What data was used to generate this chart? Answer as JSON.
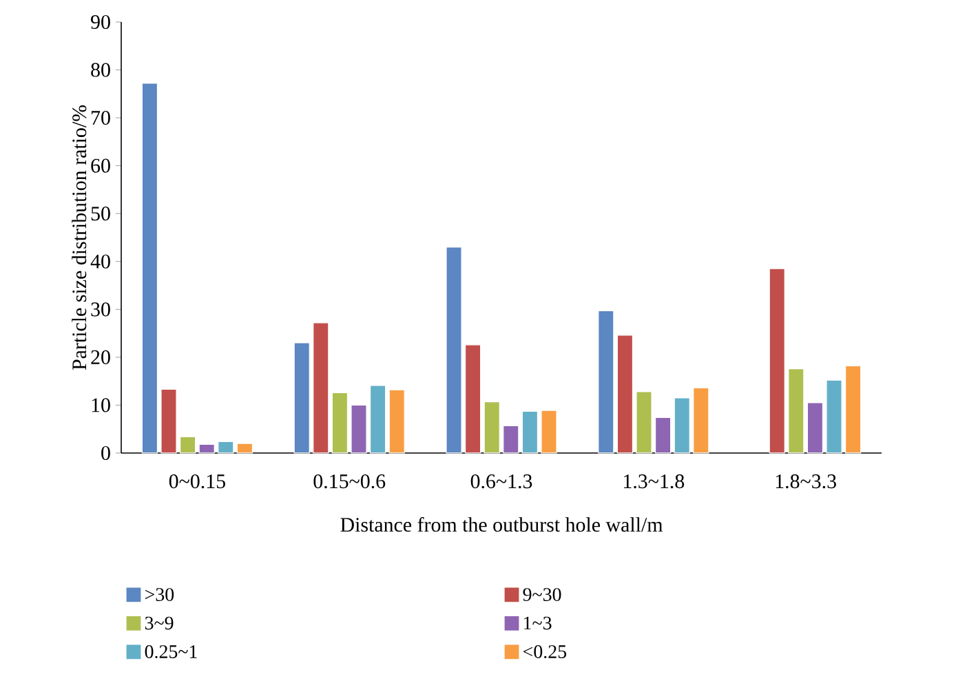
{
  "chart_data": {
    "type": "bar",
    "xlabel": "Distance from the outburst hole wall/m",
    "ylabel": "Particle size distribution ratio/%",
    "categories": [
      "0~0.15",
      "0.15~0.6",
      "0.6~1.3",
      "1.3~1.8",
      "1.8~3.3"
    ],
    "series": [
      {
        "name": ">30",
        "color": "#5b87c2",
        "values": [
          77.2,
          23.0,
          43.0,
          29.7,
          null
        ]
      },
      {
        "name": "9~30",
        "color": "#c24e4b",
        "values": [
          13.3,
          27.2,
          22.6,
          24.6,
          38.5
        ]
      },
      {
        "name": "3~9",
        "color": "#aebf50",
        "values": [
          3.4,
          12.6,
          10.7,
          12.8,
          17.6
        ]
      },
      {
        "name": "1~3",
        "color": "#8e65b3",
        "values": [
          1.8,
          10.0,
          5.7,
          7.4,
          10.5
        ]
      },
      {
        "name": "0.25~1",
        "color": "#63afc8",
        "values": [
          2.4,
          14.1,
          8.7,
          11.5,
          15.2
        ]
      },
      {
        "name": "<0.25",
        "color": "#f99d43",
        "values": [
          2.0,
          13.2,
          8.9,
          13.6,
          18.2
        ]
      }
    ],
    "ylim": [
      0,
      90
    ],
    "yticks": [
      0,
      10,
      20,
      30,
      40,
      50,
      60,
      70,
      80,
      90
    ],
    "grid": false,
    "legend": "bottom"
  }
}
